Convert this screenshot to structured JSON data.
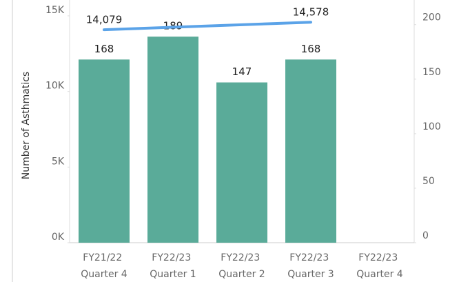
{
  "chart_data": {
    "type": "bar-line",
    "y_label": "Number of Asthmatics",
    "categories": [
      "FY21/22 Quarter 4",
      "FY22/23 Quarter 1",
      "FY22/23 Quarter 2",
      "FY22/23 Quarter 3",
      "FY22/23 Quarter 4"
    ],
    "series": [
      {
        "type": "bar",
        "color": "#5aab99",
        "axis": "y2",
        "values": [
          168,
          189,
          147,
          168,
          null
        ]
      },
      {
        "type": "line",
        "color": "#5ba3e8",
        "axis": "y",
        "values": [
          14079,
          14245,
          14412,
          14578,
          null
        ],
        "value_labels": [
          "14,079",
          null,
          null,
          "14,578",
          null
        ]
      }
    ],
    "ylim": [
      0,
      15500
    ],
    "yticks": [
      {
        "value": 0,
        "label": "0K"
      },
      {
        "value": 5000,
        "label": "5K"
      },
      {
        "value": 10000,
        "label": "10K"
      },
      {
        "value": 15000,
        "label": "15K"
      }
    ],
    "y2lim": [
      0,
      215
    ],
    "y2ticks": [
      0,
      50,
      100,
      150,
      200
    ]
  }
}
